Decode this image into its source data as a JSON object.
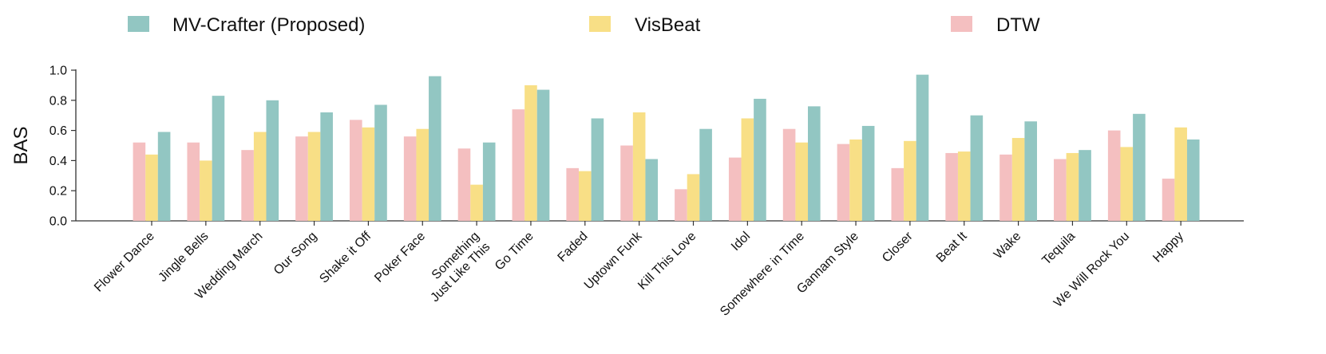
{
  "chart_data": {
    "type": "bar",
    "title": "",
    "xlabel": "",
    "ylabel": "BAS",
    "ylim": [
      0,
      1.0
    ],
    "yticks": [
      "0.0",
      "0.2",
      "0.4",
      "0.6",
      "0.8",
      "1.0"
    ],
    "legend_position": "top",
    "grid": false,
    "categories": [
      "Flower Dance",
      "Jingle Bells",
      "Wedding March",
      "Our Song",
      "Shake it Off",
      "Poker Face",
      "Something\nJust Like This",
      "Go Time",
      "Faded",
      "Uptown Funk",
      "Kill This Love",
      "Idol",
      "Somewhere in Time",
      "Gannam Style",
      "Closer",
      "Beat It",
      "Wake",
      "Tequila",
      "We Will Rock You",
      "Happy"
    ],
    "series": [
      {
        "name": "DTW",
        "color": "#f4bfc0",
        "values": [
          0.52,
          0.52,
          0.47,
          0.56,
          0.67,
          0.56,
          0.48,
          0.74,
          0.35,
          0.5,
          0.21,
          0.42,
          0.61,
          0.51,
          0.35,
          0.45,
          0.44,
          0.41,
          0.6,
          0.28
        ]
      },
      {
        "name": "VisBeat",
        "color": "#f8df86",
        "values": [
          0.44,
          0.4,
          0.59,
          0.59,
          0.62,
          0.61,
          0.24,
          0.9,
          0.33,
          0.72,
          0.31,
          0.68,
          0.52,
          0.54,
          0.53,
          0.46,
          0.55,
          0.45,
          0.49,
          0.62
        ]
      },
      {
        "name": "MV-Crafter (Proposed)",
        "color": "#92c6c2",
        "values": [
          0.59,
          0.83,
          0.8,
          0.72,
          0.77,
          0.96,
          0.52,
          0.87,
          0.68,
          0.41,
          0.61,
          0.81,
          0.76,
          0.63,
          0.97,
          0.7,
          0.66,
          0.47,
          0.71,
          0.54
        ]
      }
    ],
    "legend": [
      {
        "label": "MV-Crafter (Proposed)",
        "color": "#92c6c2"
      },
      {
        "label": "VisBeat",
        "color": "#f8df86"
      },
      {
        "label": "DTW",
        "color": "#f4bfc0"
      }
    ]
  }
}
